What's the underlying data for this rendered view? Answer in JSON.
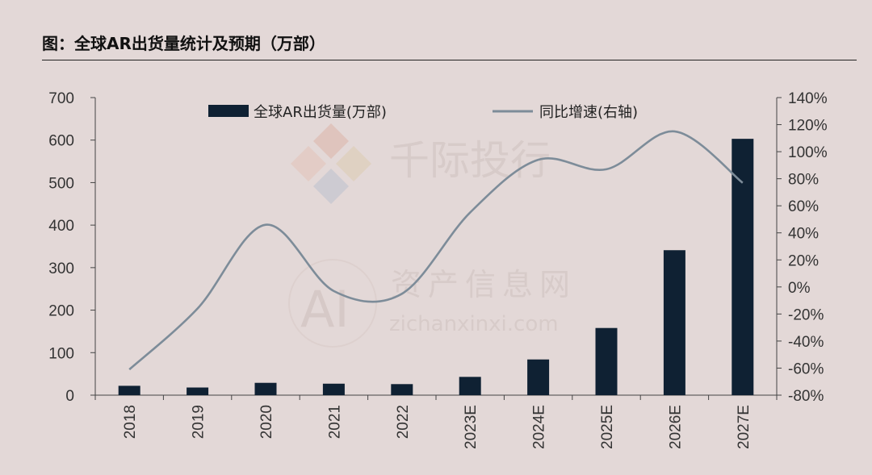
{
  "header": {
    "title": "图：全球AR出货量统计及预期（万部）"
  },
  "watermark": {
    "line1": "千际投行",
    "line2": "资产信息网",
    "line3": "zichanxinxi.com",
    "logo_text": "AI"
  },
  "chart_data": {
    "type": "bar+line",
    "categories": [
      "2018",
      "2019",
      "2020",
      "2021",
      "2022",
      "2023E",
      "2024E",
      "2025E",
      "2026E",
      "2027E"
    ],
    "series": [
      {
        "name": "全球AR出货量(万部)",
        "type": "bar",
        "axis": "left",
        "color": "#0f2133",
        "values": [
          22,
          18,
          29,
          27,
          26,
          43,
          84,
          158,
          341,
          603
        ]
      },
      {
        "name": "同比增速(右轴)",
        "type": "line",
        "axis": "right",
        "color": "#7d8c99",
        "values": [
          -61,
          -16,
          46,
          -3,
          -5,
          55,
          94,
          87,
          115,
          77
        ]
      }
    ],
    "y_left": {
      "min": 0,
      "max": 700,
      "ticks": [
        "0",
        "100",
        "200",
        "300",
        "400",
        "500",
        "600",
        "700"
      ]
    },
    "y_right": {
      "min": -80,
      "max": 140,
      "ticks": [
        "-80%",
        "-60%",
        "-40%",
        "-20%",
        "0%",
        "20%",
        "40%",
        "60%",
        "80%",
        "100%",
        "120%",
        "140%"
      ]
    },
    "grid": false,
    "legend_position": "top"
  }
}
